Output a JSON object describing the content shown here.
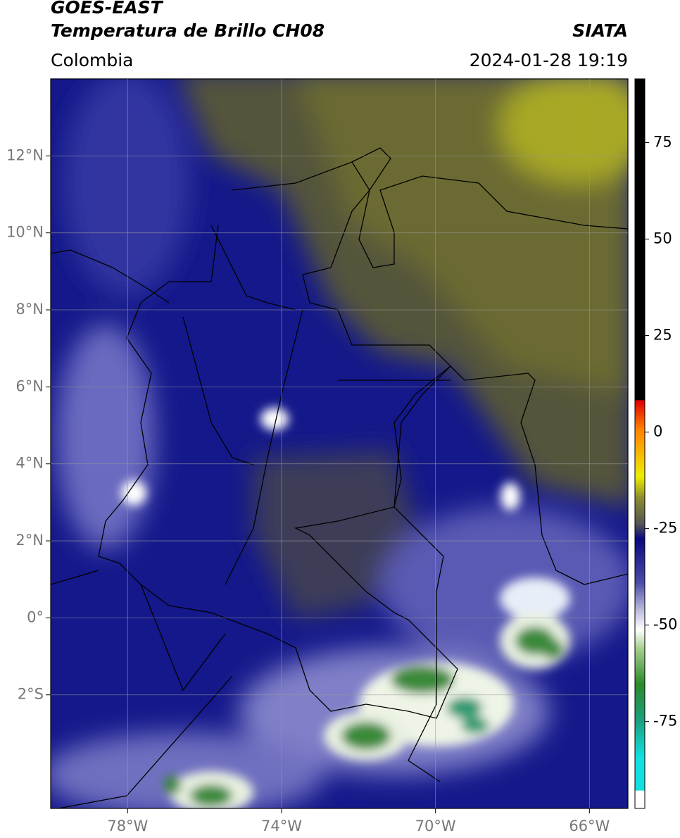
{
  "header": {
    "title": "GOES-EAST",
    "subtitle": "Temperatura de Brillo CH08",
    "source": "SIATA",
    "region": "Colombia",
    "timestamp": "2024-01-28 19:19"
  },
  "map": {
    "lon_range": [
      -80,
      -65
    ],
    "lat_range": [
      -4.95,
      14
    ],
    "lon_ticks": [
      {
        "value": -78,
        "label": "78°W"
      },
      {
        "value": -74,
        "label": "74°W"
      },
      {
        "value": -70,
        "label": "70°W"
      },
      {
        "value": -66,
        "label": "66°W"
      }
    ],
    "lat_ticks": [
      {
        "value": 12,
        "label": "12°N"
      },
      {
        "value": 10,
        "label": "10°N"
      },
      {
        "value": 8,
        "label": "8°N"
      },
      {
        "value": 6,
        "label": "6°N"
      },
      {
        "value": 4,
        "label": "4°N"
      },
      {
        "value": 2,
        "label": "2°N"
      },
      {
        "value": 0,
        "label": "0°"
      },
      {
        "value": -2,
        "label": "2°S"
      }
    ],
    "grid": true
  },
  "colorbar": {
    "range": [
      -97.5,
      91.5
    ],
    "ticks": [
      75,
      50,
      25,
      0,
      -25,
      -50,
      -75
    ]
  }
}
